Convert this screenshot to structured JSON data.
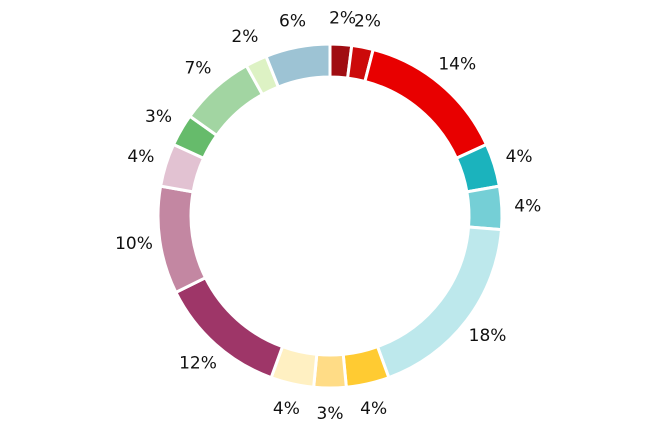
{
  "chart_data": {
    "type": "donut",
    "values": [
      2,
      2,
      14,
      4,
      4,
      18,
      4,
      3,
      4,
      12,
      10,
      4,
      3,
      7,
      2,
      6
    ],
    "value_labels": [
      "2%",
      "2%",
      "14%",
      "4%",
      "4%",
      "18%",
      "4%",
      "3%",
      "4%",
      "12%",
      "10%",
      "4%",
      "3%",
      "7%",
      "2%",
      "6%"
    ],
    "colors": [
      "#a00d12",
      "#cc0a0a",
      "#e80000",
      "#1bb3bd",
      "#75cfd6",
      "#bde8ec",
      "#ffcb32",
      "#ffdc86",
      "#fff0c2",
      "#9e3668",
      "#c387a2",
      "#e2c2d2",
      "#66bb6b",
      "#a2d5a2",
      "#ddf2c4",
      "#9dc3d4"
    ]
  }
}
